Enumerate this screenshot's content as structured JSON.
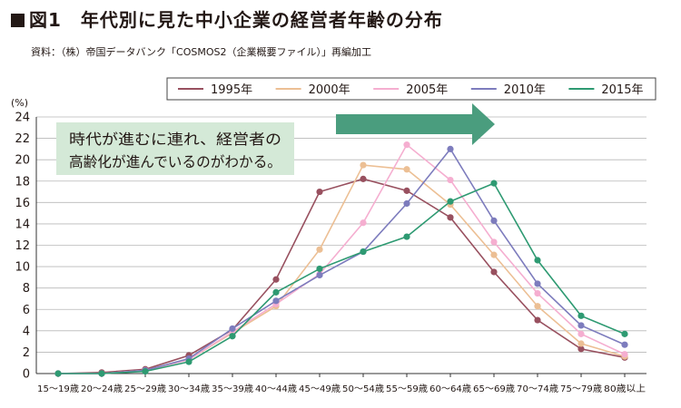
{
  "figure": {
    "title": "図1　年代別に見た中小企業の経営者年齢の分布",
    "source": "資料：（株）帝国データバンク「COSMOS2（企業概要ファイル）」再編加工"
  },
  "chart_data": {
    "type": "line",
    "title": "図1　年代別に見た中小企業の経営者年齢の分布",
    "ylabel": "(%)",
    "xlabel": "",
    "ylim": [
      0,
      24
    ],
    "yticks": [
      0,
      2,
      4,
      6,
      8,
      10,
      12,
      14,
      16,
      18,
      20,
      22,
      24
    ],
    "grid": true,
    "legend_position": "top",
    "categories": [
      "15～19歳",
      "20～24歳",
      "25～29歳",
      "30～34歳",
      "35～39歳",
      "40～44歳",
      "45～49歳",
      "50～54歳",
      "55～59歳",
      "60～64歳",
      "65～69歳",
      "70～74歳",
      "75～79歳",
      "80歳以上"
    ],
    "series": [
      {
        "name": "1995年",
        "color": "#98505f",
        "values": [
          0.0,
          0.1,
          0.4,
          1.7,
          4.1,
          8.8,
          17.0,
          18.2,
          17.1,
          14.6,
          9.5,
          5.0,
          2.3,
          1.5
        ]
      },
      {
        "name": "2000年",
        "color": "#ecbf94",
        "values": [
          0.0,
          0.0,
          0.3,
          1.3,
          3.8,
          6.3,
          11.6,
          19.5,
          19.1,
          15.8,
          11.1,
          6.3,
          2.8,
          1.6
        ]
      },
      {
        "name": "2005年",
        "color": "#f5aed0",
        "values": [
          0.0,
          0.0,
          0.3,
          1.3,
          3.9,
          6.5,
          9.3,
          14.1,
          21.4,
          18.1,
          12.3,
          7.5,
          3.7,
          1.8
        ]
      },
      {
        "name": "2010年",
        "color": "#7d7cbd",
        "values": [
          0.0,
          0.0,
          0.3,
          1.4,
          4.2,
          6.8,
          9.2,
          11.4,
          15.9,
          21.0,
          14.3,
          8.4,
          4.5,
          2.7
        ]
      },
      {
        "name": "2015年",
        "color": "#2e9a72",
        "values": [
          0.0,
          0.0,
          0.2,
          1.1,
          3.5,
          7.6,
          9.8,
          11.4,
          12.8,
          16.1,
          17.8,
          10.6,
          5.4,
          3.7
        ]
      }
    ],
    "annotation": {
      "lines": [
        "時代が進むに連れ、経営者の",
        "高齢化が進んでいるのがわかる。"
      ],
      "box_color": "#d4e9d7",
      "arrow_color": "#4a9d7e"
    }
  }
}
